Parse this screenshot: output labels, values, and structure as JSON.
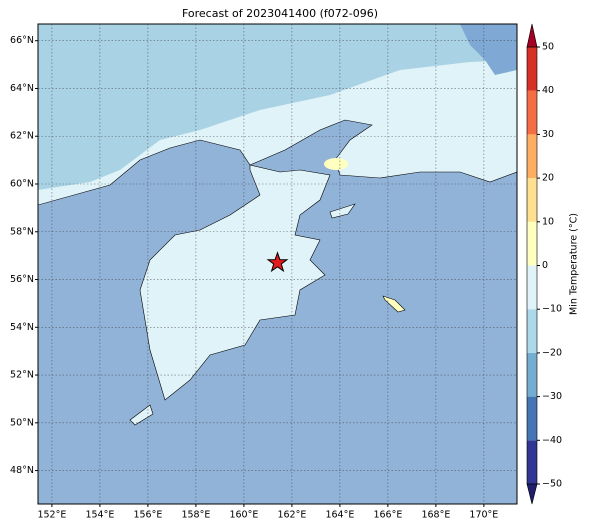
{
  "chart_data": {
    "type": "map",
    "title": "Forecast of 2023041400 (f072-096)",
    "lonlim": [
      151.42,
      171.38
    ],
    "latlim": [
      46.6,
      66.7
    ],
    "grid": true,
    "xticks": [
      {
        "value": 152,
        "label": "152°E"
      },
      {
        "value": 154,
        "label": "154°E"
      },
      {
        "value": 156,
        "label": "156°E"
      },
      {
        "value": 158,
        "label": "158°E"
      },
      {
        "value": 160,
        "label": "160°E"
      },
      {
        "value": 162,
        "label": "162°E"
      },
      {
        "value": 164,
        "label": "164°E"
      },
      {
        "value": 166,
        "label": "166°E"
      },
      {
        "value": 168,
        "label": "168°E"
      },
      {
        "value": 170,
        "label": "170°E"
      }
    ],
    "yticks": [
      {
        "value": 48,
        "label": "48°N"
      },
      {
        "value": 50,
        "label": "50°N"
      },
      {
        "value": 52,
        "label": "52°N"
      },
      {
        "value": 54,
        "label": "54°N"
      },
      {
        "value": 56,
        "label": "56°N"
      },
      {
        "value": 58,
        "label": "58°N"
      },
      {
        "value": 60,
        "label": "60°N"
      },
      {
        "value": 62,
        "label": "62°N"
      },
      {
        "value": 64,
        "label": "64°N"
      },
      {
        "value": 66,
        "label": "66°N"
      }
    ],
    "marker": {
      "lon": 161.4,
      "lat": 56.7,
      "color": "#e41a1c"
    },
    "colorbar": {
      "label": "Min Temperature (°C)",
      "lim": [
        -50,
        50
      ],
      "ticks": [
        {
          "value": -50,
          "label": "−50"
        },
        {
          "value": -40,
          "label": "−40"
        },
        {
          "value": -30,
          "label": "−30"
        },
        {
          "value": -20,
          "label": "−20"
        },
        {
          "value": -10,
          "label": "−10"
        },
        0,
        10,
        20,
        30,
        40,
        50
      ],
      "colors": [
        "#313695",
        "#4575b4",
        "#74add1",
        "#abd9e9",
        "#e0f3f8",
        "#ffffbf",
        "#fee090",
        "#fdae61",
        "#f46d43",
        "#d73027"
      ],
      "under": "#1f1f6e",
      "over": "#a50026"
    }
  }
}
